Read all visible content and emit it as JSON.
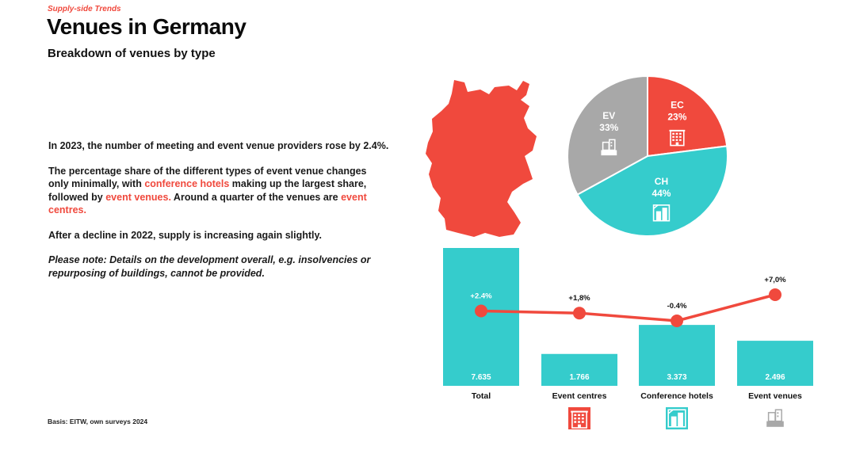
{
  "header": {
    "eyebrow": "Supply-side Trends",
    "title": "Venues in Germany",
    "subtitle": "Breakdown of venues by type"
  },
  "body": {
    "p1": "In 2023, the number of meeting and event venue providers rose by 2.4%.",
    "p2_a": "The percentage share of the different types of event venue changes only minimally, with ",
    "p2_hl1": "conference hotels",
    "p2_b": " making up the largest share, followed by ",
    "p2_hl2": "event venues.",
    "p2_c": " Around a quarter of the venues are ",
    "p2_hl3": "event centres.",
    "p3": "After a decline in 2022, supply is increasing again slightly.",
    "p4": "Please note: Details on the development overall, e.g. insolvencies or repurposing of buildings, cannot be provided."
  },
  "footer": {
    "basis": "Basis: EITW, own surveys 2024"
  },
  "colors": {
    "red": "#f0493d",
    "teal": "#35cccc",
    "grey": "#a8a8a8",
    "white": "#ffffff"
  },
  "icons": {
    "event_centres": "building-icon",
    "conference_hotels": "hotel-icon",
    "event_venues": "venue-icon"
  },
  "chart_data": [
    {
      "type": "pie",
      "labels": [
        "EC",
        "CH",
        "EV"
      ],
      "values": [
        23,
        44,
        33
      ],
      "value_labels": [
        "23%",
        "44%",
        "33%"
      ],
      "colors": [
        "#f0493d",
        "#35cccc",
        "#a8a8a8"
      ]
    },
    {
      "type": "bar",
      "categories": [
        "Total",
        "Event centres",
        "Conference hotels",
        "Event venues"
      ],
      "values": [
        7635,
        1766,
        3373,
        2496
      ],
      "value_labels": [
        "7.635",
        "1.766",
        "3.373",
        "2.496"
      ],
      "bar_color": "#35cccc",
      "overlay_line": {
        "values": [
          2.4,
          1.8,
          -0.4,
          7.0
        ],
        "labels": [
          "+2.4%",
          "+1,8%",
          "-0.4%",
          "+7,0%"
        ],
        "color": "#f0493d"
      }
    }
  ]
}
